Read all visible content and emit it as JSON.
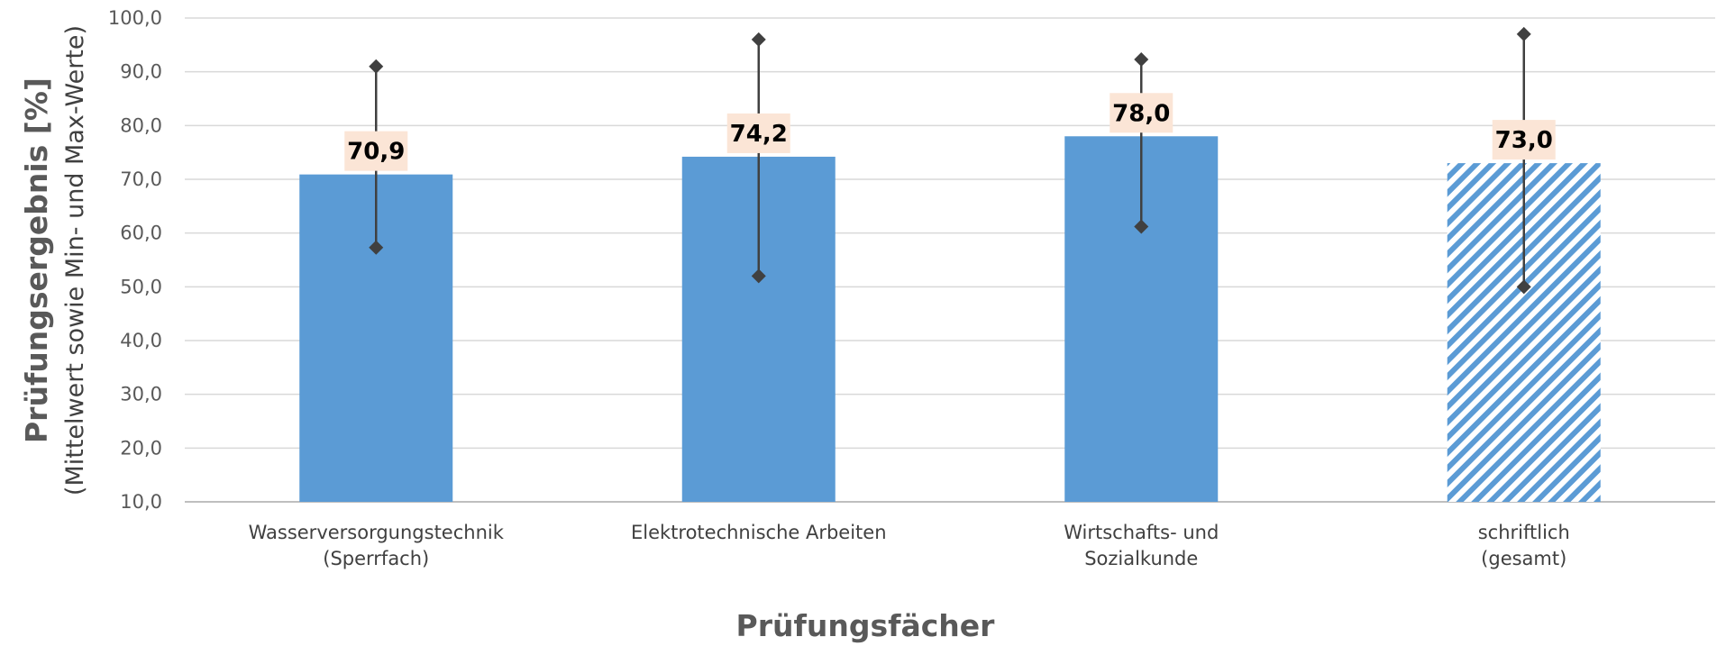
{
  "chart_data": {
    "type": "bar",
    "categories": [
      [
        "Wasserversorgungstechnik",
        "(Sperrfach)"
      ],
      [
        "Elektrotechnische Arbeiten"
      ],
      [
        "Wirtschafts- und",
        "Sozialkunde"
      ],
      [
        "schriftlich",
        "(gesamt)"
      ]
    ],
    "values": [
      70.9,
      74.2,
      78.0,
      73.0
    ],
    "value_labels": [
      "70,9",
      "74,2",
      "78,0",
      "73,0"
    ],
    "min": [
      57.3,
      52.0,
      61.2,
      50.0
    ],
    "max": [
      91.0,
      96.0,
      92.3,
      97.0
    ],
    "hatched": [
      false,
      false,
      false,
      true
    ],
    "ylim": [
      10,
      100
    ],
    "y_ticks": [
      "10,0",
      "20,0",
      "30,0",
      "40,0",
      "50,0",
      "60,0",
      "70,0",
      "80,0",
      "90,0",
      "100,0"
    ],
    "ylabel": "Prüfungsergebnis [%]",
    "ylabel_sub": "(Mittelwert sowie Min- und Max-Werte)",
    "xlabel": "Prüfungsfächer",
    "grid": true,
    "colors": {
      "bar": "#5b9bd5",
      "errorbar": "#404040",
      "label_bg": "#fbe5d6",
      "grid": "#d9d9d9"
    }
  }
}
